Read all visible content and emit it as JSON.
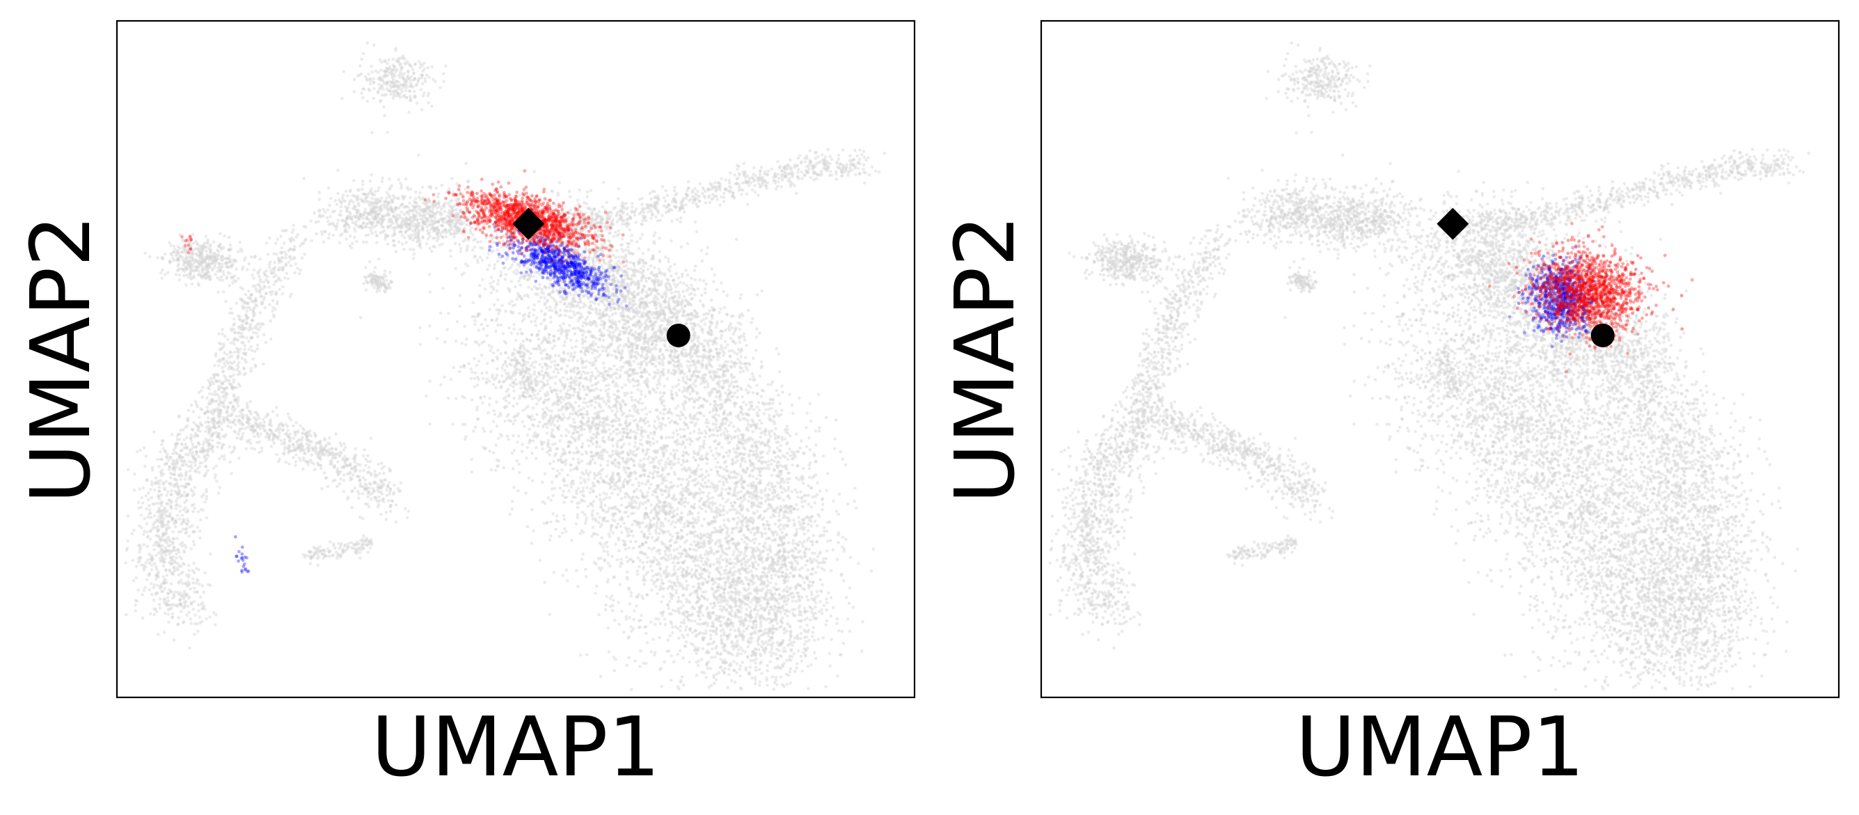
{
  "chart_data": [
    {
      "type": "scatter",
      "panel": "left",
      "title": "",
      "xlabel": "UMAP1",
      "ylabel": "UMAP2",
      "xticks": [],
      "yticks": [],
      "grid": false,
      "legend": "none",
      "xlim": [
        0,
        100
      ],
      "ylim": [
        0,
        100
      ],
      "background_points": {
        "color": "#d3d3d3",
        "description_regions": [
          {
            "name": "top-small-cluster",
            "x": 35,
            "y": 91
          },
          {
            "name": "left-arm",
            "x": 12,
            "y": 62
          },
          {
            "name": "upper-bridge",
            "x": 33,
            "y": 70
          },
          {
            "name": "long-right-arm",
            "x": 80,
            "y": 74
          },
          {
            "name": "lower-left-hook",
            "x": 8,
            "y": 15
          },
          {
            "name": "main-body",
            "x": 73,
            "y": 30
          }
        ]
      },
      "highlighted_points": {
        "red": {
          "color": "#ff0000",
          "center": [
            51.5,
            70.5
          ]
        },
        "blue": {
          "color": "#0000ff",
          "center": [
            55.5,
            64.0
          ]
        }
      },
      "markers": [
        {
          "shape": "diamond",
          "color": "#000000",
          "x": 51.6,
          "y": 70.0
        },
        {
          "shape": "circle",
          "color": "#000000",
          "x": 70.4,
          "y": 53.5
        }
      ]
    },
    {
      "type": "scatter",
      "panel": "right",
      "title": "",
      "xlabel": "UMAP1",
      "ylabel": "UMAP2",
      "xticks": [],
      "yticks": [],
      "grid": false,
      "legend": "none",
      "xlim": [
        0,
        100
      ],
      "ylim": [
        0,
        100
      ],
      "background_points": {
        "color": "#d3d3d3"
      },
      "highlighted_points": {
        "red": {
          "color": "#ff0000",
          "center": [
            68.5,
            60.0
          ]
        },
        "blue": {
          "color": "#0000ff",
          "center": [
            65.0,
            59.0
          ]
        }
      },
      "markers": [
        {
          "shape": "diamond",
          "color": "#000000",
          "x": 51.6,
          "y": 70.0
        },
        {
          "shape": "circle",
          "color": "#000000",
          "x": 70.4,
          "y": 53.5
        }
      ]
    }
  ],
  "panels": {
    "left": {
      "xlabel": "UMAP1",
      "ylabel": "UMAP2"
    },
    "right": {
      "xlabel": "UMAP1",
      "ylabel": "UMAP2"
    }
  },
  "colors": {
    "background_points": "#d3d3d3",
    "red_points": "#ff0000",
    "blue_points": "#0000ff",
    "markers": "#000000"
  }
}
